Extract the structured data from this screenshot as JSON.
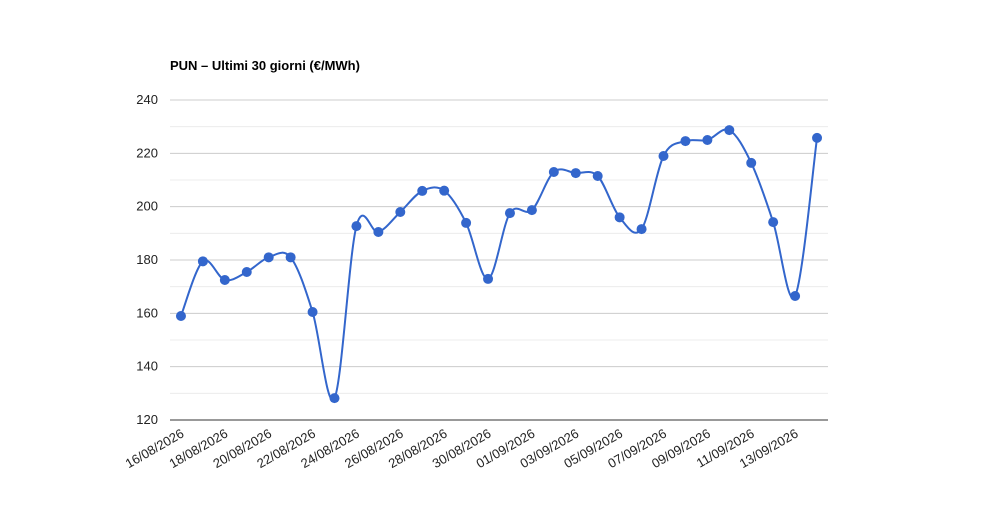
{
  "chart_data": {
    "type": "line",
    "title": "PUN – Ultimi 30 giorni (€/MWh)",
    "categories": [
      "16/08/2026",
      null,
      "18/08/2026",
      null,
      "20/08/2026",
      null,
      "22/08/2026",
      null,
      "24/08/2026",
      null,
      "26/08/2026",
      null,
      "28/08/2026",
      null,
      "30/08/2026",
      null,
      "01/09/2026",
      null,
      "03/09/2026",
      null,
      "05/09/2026",
      null,
      "07/09/2026",
      null,
      "09/09/2026",
      null,
      "11/09/2026",
      null,
      "13/09/2026",
      null
    ],
    "series": [
      {
        "name": "PUN",
        "color": "#3366cc",
        "values": [
          159,
          179.5,
          172.5,
          175.5,
          181,
          181,
          160.5,
          128.2,
          192.7,
          190.5,
          198,
          205.9,
          206,
          193.9,
          172.9,
          197.6,
          198.7,
          213,
          212.6,
          211.5,
          196,
          191.6,
          219,
          224.6,
          225,
          228.7,
          216.4,
          194.2,
          166.5,
          225.8
        ]
      }
    ],
    "ylim": [
      120,
      240
    ],
    "yticks": [
      120,
      140,
      160,
      180,
      200,
      220,
      240
    ],
    "grid": true,
    "minor_grid": true,
    "smooth": true
  }
}
